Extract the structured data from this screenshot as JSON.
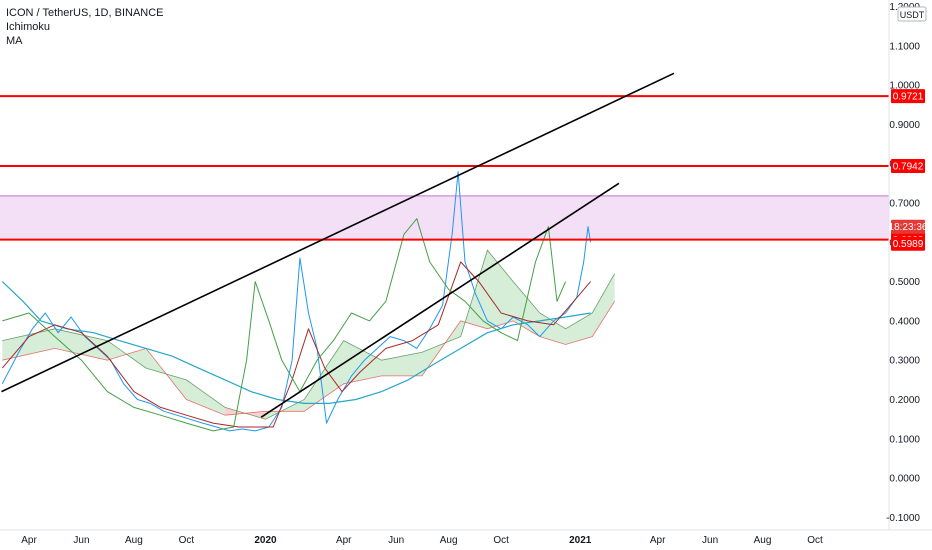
{
  "legend": {
    "title": "ICON / TetherUS, 1D, BINANCE",
    "indicator_1": "Ichimoku",
    "indicator_2": "MA"
  },
  "price_scale": {
    "currency": "USDT"
  },
  "countdown": "18:23:36",
  "colors": {
    "support_line": "#ff0000",
    "zone_fill": "#f3e0f7",
    "zone_border": "#9c27b0",
    "trendline": "#000000",
    "price_line": "#2196f3",
    "conversion_line": "#a52a2a",
    "lagging_span": "#43a047",
    "cloud_bull": "#a5d6a7",
    "cloud_bear": "#ef9a9a",
    "ma": "#26a6c9",
    "label_red": "#ff0000",
    "label_countdown": "#e53935"
  },
  "chart_data": {
    "type": "line",
    "title": "ICON / TetherUS, 1D, BINANCE",
    "ylim": [
      -0.1,
      1.2
    ],
    "y_ticks": [
      "1.2000",
      "1.1000",
      "1.0000",
      "0.9000",
      "0.8000",
      "0.7000",
      "0.6000",
      "0.5000",
      "0.4000",
      "0.3000",
      "0.2000",
      "0.1000",
      "0.0000",
      "-0.1000"
    ],
    "x_ticks": [
      {
        "label": "Apr",
        "date": "2019-04-01"
      },
      {
        "label": "Jun",
        "date": "2019-06-01"
      },
      {
        "label": "Aug",
        "date": "2019-08-01"
      },
      {
        "label": "Oct",
        "date": "2019-10-01"
      },
      {
        "label": "2020",
        "date": "2020-01-01",
        "bold": true
      },
      {
        "label": "Apr",
        "date": "2020-04-01"
      },
      {
        "label": "Jun",
        "date": "2020-06-01"
      },
      {
        "label": "Aug",
        "date": "2020-08-01"
      },
      {
        "label": "Oct",
        "date": "2020-10-01"
      },
      {
        "label": "2021",
        "date": "2021-01-01",
        "bold": true
      },
      {
        "label": "Apr",
        "date": "2021-04-01"
      },
      {
        "label": "Jun",
        "date": "2021-06-01"
      },
      {
        "label": "Aug",
        "date": "2021-08-01"
      },
      {
        "label": "Oct",
        "date": "2021-10-01"
      }
    ],
    "horizontal_levels": [
      {
        "value": 0.9721,
        "label": "0.9721"
      },
      {
        "value": 0.7942,
        "label": "0.7942"
      },
      {
        "value": 0.6068,
        "label": "0.6068"
      }
    ],
    "zone": {
      "from": 0.6068,
      "to": 0.718
    },
    "current_price": {
      "value": 0.5989,
      "label": "0.5989"
    },
    "trendlines": [
      {
        "from": {
          "date": "2019-02-28",
          "y": 0.22
        },
        "to": {
          "date": "2021-04-20",
          "y": 1.03
        }
      },
      {
        "from": {
          "date": "2019-12-27",
          "y": 0.155
        },
        "to": {
          "date": "2021-02-15",
          "y": 0.75
        }
      }
    ],
    "series": [
      {
        "kind": "price",
        "points": [
          [
            "2019-03-01",
            0.24
          ],
          [
            "2019-03-20",
            0.32
          ],
          [
            "2019-04-05",
            0.38
          ],
          [
            "2019-04-20",
            0.42
          ],
          [
            "2019-05-05",
            0.37
          ],
          [
            "2019-05-20",
            0.41
          ],
          [
            "2019-06-05",
            0.36
          ],
          [
            "2019-06-20",
            0.33
          ],
          [
            "2019-07-05",
            0.3
          ],
          [
            "2019-07-20",
            0.24
          ],
          [
            "2019-08-05",
            0.2
          ],
          [
            "2019-08-20",
            0.19
          ],
          [
            "2019-09-05",
            0.17
          ],
          [
            "2019-09-20",
            0.16
          ],
          [
            "2019-10-05",
            0.15
          ],
          [
            "2019-10-20",
            0.14
          ],
          [
            "2019-11-05",
            0.13
          ],
          [
            "2019-11-20",
            0.12
          ],
          [
            "2019-12-05",
            0.125
          ],
          [
            "2019-12-20",
            0.12
          ],
          [
            "2020-01-05",
            0.13
          ],
          [
            "2020-01-20",
            0.18
          ],
          [
            "2020-02-01",
            0.3
          ],
          [
            "2020-02-10",
            0.56
          ],
          [
            "2020-02-20",
            0.42
          ],
          [
            "2020-03-01",
            0.33
          ],
          [
            "2020-03-12",
            0.14
          ],
          [
            "2020-03-25",
            0.2
          ],
          [
            "2020-04-10",
            0.26
          ],
          [
            "2020-04-25",
            0.3
          ],
          [
            "2020-05-10",
            0.33
          ],
          [
            "2020-05-25",
            0.36
          ],
          [
            "2020-06-10",
            0.35
          ],
          [
            "2020-06-25",
            0.33
          ],
          [
            "2020-07-10",
            0.38
          ],
          [
            "2020-07-25",
            0.44
          ],
          [
            "2020-08-05",
            0.62
          ],
          [
            "2020-08-12",
            0.78
          ],
          [
            "2020-08-20",
            0.55
          ],
          [
            "2020-09-01",
            0.47
          ],
          [
            "2020-09-15",
            0.4
          ],
          [
            "2020-10-01",
            0.38
          ],
          [
            "2020-10-15",
            0.41
          ],
          [
            "2020-11-01",
            0.39
          ],
          [
            "2020-11-15",
            0.36
          ],
          [
            "2020-12-01",
            0.4
          ],
          [
            "2020-12-15",
            0.42
          ],
          [
            "2020-12-28",
            0.46
          ],
          [
            "2021-01-05",
            0.55
          ],
          [
            "2021-01-10",
            0.64
          ],
          [
            "2021-01-13",
            0.6
          ]
        ]
      },
      {
        "kind": "ma",
        "points": [
          [
            "2019-03-01",
            0.5
          ],
          [
            "2019-03-25",
            0.45
          ],
          [
            "2019-04-15",
            0.4
          ],
          [
            "2019-05-15",
            0.38
          ],
          [
            "2019-06-15",
            0.37
          ],
          [
            "2019-07-15",
            0.35
          ],
          [
            "2019-08-15",
            0.33
          ],
          [
            "2019-09-15",
            0.31
          ],
          [
            "2019-10-15",
            0.28
          ],
          [
            "2019-11-15",
            0.25
          ],
          [
            "2019-12-15",
            0.22
          ],
          [
            "2020-01-15",
            0.2
          ],
          [
            "2020-02-15",
            0.19
          ],
          [
            "2020-03-15",
            0.19
          ],
          [
            "2020-04-15",
            0.2
          ],
          [
            "2020-05-15",
            0.22
          ],
          [
            "2020-06-15",
            0.25
          ],
          [
            "2020-07-15",
            0.29
          ],
          [
            "2020-08-15",
            0.33
          ],
          [
            "2020-09-15",
            0.37
          ],
          [
            "2020-10-15",
            0.39
          ],
          [
            "2020-11-15",
            0.4
          ],
          [
            "2020-12-15",
            0.41
          ],
          [
            "2021-01-13",
            0.42
          ]
        ]
      },
      {
        "kind": "conversion",
        "points": [
          [
            "2019-03-01",
            0.28
          ],
          [
            "2019-04-01",
            0.36
          ],
          [
            "2019-05-01",
            0.39
          ],
          [
            "2019-06-01",
            0.37
          ],
          [
            "2019-07-01",
            0.31
          ],
          [
            "2019-08-01",
            0.22
          ],
          [
            "2019-09-01",
            0.18
          ],
          [
            "2019-10-01",
            0.16
          ],
          [
            "2019-11-01",
            0.14
          ],
          [
            "2019-12-01",
            0.13
          ],
          [
            "2020-01-10",
            0.13
          ],
          [
            "2020-02-01",
            0.25
          ],
          [
            "2020-02-20",
            0.38
          ],
          [
            "2020-03-10",
            0.28
          ],
          [
            "2020-03-30",
            0.22
          ],
          [
            "2020-04-20",
            0.27
          ],
          [
            "2020-05-20",
            0.33
          ],
          [
            "2020-06-20",
            0.35
          ],
          [
            "2020-07-20",
            0.39
          ],
          [
            "2020-08-15",
            0.55
          ],
          [
            "2020-09-05",
            0.5
          ],
          [
            "2020-10-01",
            0.42
          ],
          [
            "2020-11-01",
            0.4
          ],
          [
            "2020-12-01",
            0.39
          ],
          [
            "2021-01-13",
            0.5
          ]
        ]
      },
      {
        "kind": "lagging",
        "points": [
          [
            "2019-03-01",
            0.4
          ],
          [
            "2019-04-01",
            0.42
          ],
          [
            "2019-05-01",
            0.36
          ],
          [
            "2019-06-01",
            0.3
          ],
          [
            "2019-07-01",
            0.22
          ],
          [
            "2019-08-01",
            0.18
          ],
          [
            "2019-09-01",
            0.16
          ],
          [
            "2019-10-01",
            0.14
          ],
          [
            "2019-11-01",
            0.12
          ],
          [
            "2019-11-25",
            0.13
          ],
          [
            "2019-12-10",
            0.3
          ],
          [
            "2019-12-20",
            0.5
          ],
          [
            "2020-01-05",
            0.4
          ],
          [
            "2020-01-20",
            0.3
          ],
          [
            "2020-02-10",
            0.22
          ],
          [
            "2020-03-01",
            0.3
          ],
          [
            "2020-03-20",
            0.35
          ],
          [
            "2020-04-10",
            0.42
          ],
          [
            "2020-05-01",
            0.4
          ],
          [
            "2020-05-20",
            0.45
          ],
          [
            "2020-06-10",
            0.62
          ],
          [
            "2020-06-25",
            0.66
          ],
          [
            "2020-07-10",
            0.55
          ],
          [
            "2020-08-01",
            0.48
          ],
          [
            "2020-08-20",
            0.45
          ],
          [
            "2020-09-10",
            0.4
          ],
          [
            "2020-10-01",
            0.37
          ],
          [
            "2020-10-20",
            0.35
          ],
          [
            "2020-11-10",
            0.55
          ],
          [
            "2020-11-25",
            0.64
          ],
          [
            "2020-12-05",
            0.45
          ],
          [
            "2020-12-15",
            0.5
          ]
        ]
      },
      {
        "kind": "cloud",
        "points": [
          [
            "2019-03-01",
            0.35,
            0.3
          ],
          [
            "2019-05-01",
            0.38,
            0.33
          ],
          [
            "2019-07-01",
            0.35,
            0.3
          ],
          [
            "2019-08-15",
            0.28,
            0.33
          ],
          [
            "2019-10-01",
            0.25,
            0.2
          ],
          [
            "2019-11-15",
            0.18,
            0.16
          ],
          [
            "2020-01-01",
            0.15,
            0.17
          ],
          [
            "2020-02-15",
            0.2,
            0.17
          ],
          [
            "2020-04-01",
            0.35,
            0.24
          ],
          [
            "2020-05-15",
            0.3,
            0.26
          ],
          [
            "2020-07-01",
            0.32,
            0.26
          ],
          [
            "2020-08-15",
            0.36,
            0.4
          ],
          [
            "2020-09-15",
            0.58,
            0.38
          ],
          [
            "2020-10-15",
            0.5,
            0.4
          ],
          [
            "2020-11-15",
            0.42,
            0.36
          ],
          [
            "2020-12-15",
            0.38,
            0.34
          ],
          [
            "2021-01-15",
            0.42,
            0.36
          ],
          [
            "2021-02-10",
            0.52,
            0.45
          ]
        ]
      }
    ]
  }
}
